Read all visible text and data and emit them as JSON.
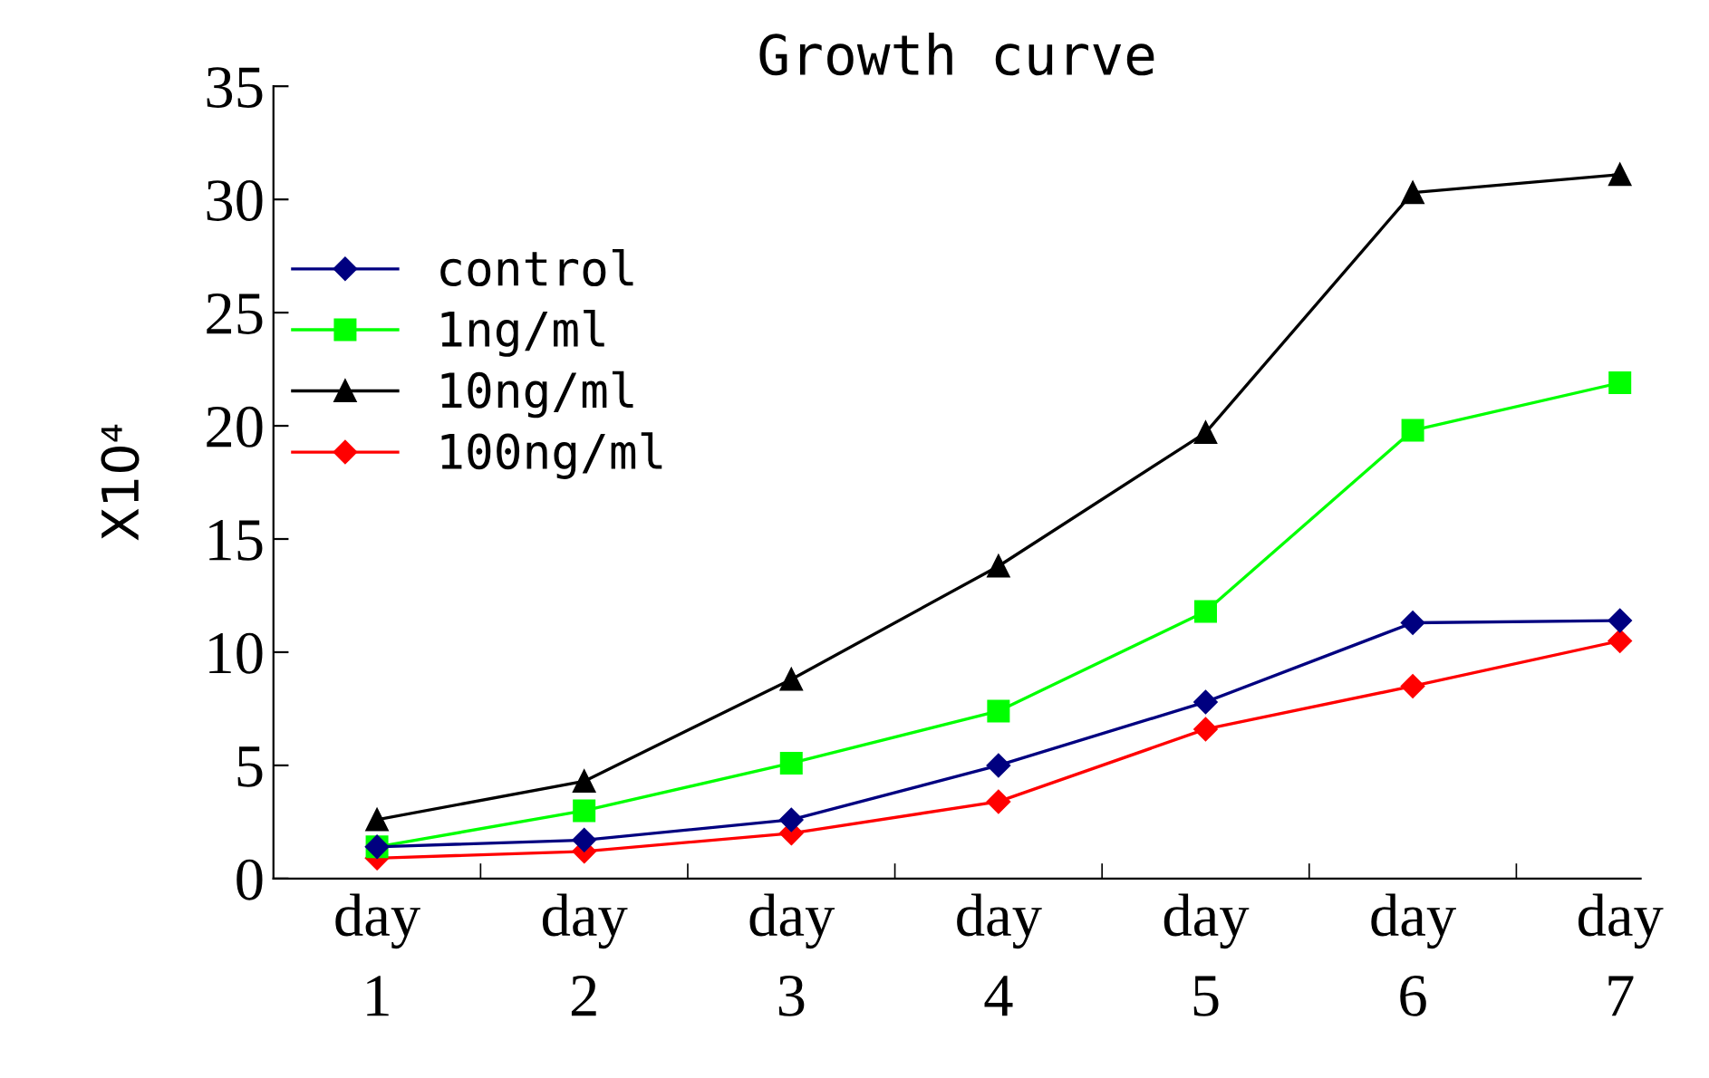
{
  "chart_data": {
    "type": "line",
    "title": "Growth curve",
    "ylabel": "X10⁴",
    "categories": [
      "day\n1",
      "day\n2",
      "day\n3",
      "day\n4",
      "day\n5",
      "day\n6",
      "day\n7"
    ],
    "series": [
      {
        "name": "control",
        "color": "#000080",
        "marker": "diamond",
        "values": [
          1.4,
          1.7,
          2.6,
          5.0,
          7.8,
          11.3,
          11.4
        ]
      },
      {
        "name": "1ng/ml",
        "color": "#00ff00",
        "marker": "square",
        "values": [
          1.4,
          3.0,
          5.1,
          7.4,
          11.8,
          19.8,
          21.9
        ]
      },
      {
        "name": "10ng/ml",
        "color": "#000000",
        "marker": "triangle",
        "values": [
          2.6,
          4.3,
          8.8,
          13.8,
          19.7,
          30.3,
          31.1
        ]
      },
      {
        "name": "100ng/ml",
        "color": "#ff0000",
        "marker": "diamond",
        "values": [
          0.9,
          1.2,
          2.0,
          3.4,
          6.6,
          8.5,
          10.5
        ]
      }
    ],
    "ylim": [
      0,
      35
    ],
    "yticks": [
      0,
      5,
      10,
      15,
      20,
      25,
      30,
      35
    ],
    "grid": false,
    "legend": "top left",
    "line_style": "solid"
  }
}
